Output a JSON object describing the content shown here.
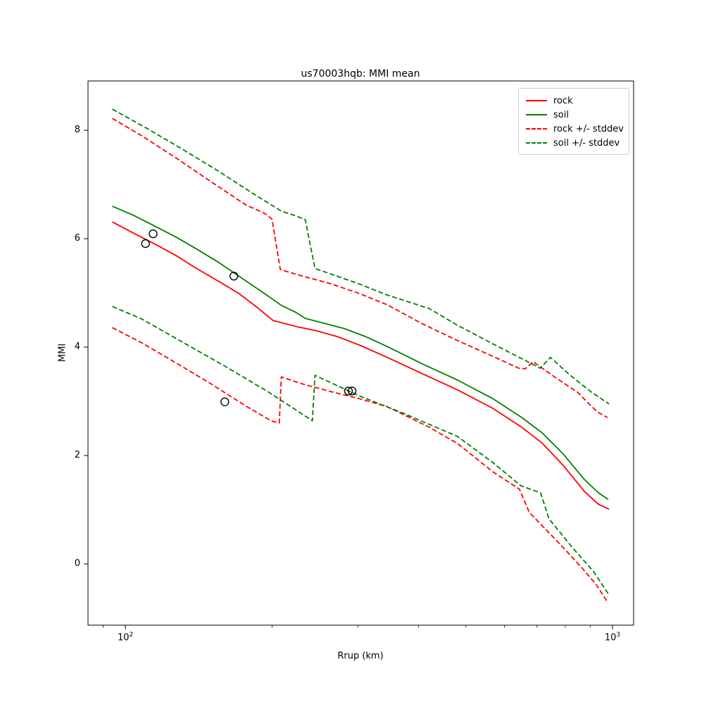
{
  "figure": {
    "title": "us70003hqb: MMI mean",
    "xlabel": "Rrup (km)",
    "ylabel": "MMI"
  },
  "colors": {
    "rock": "#ff0000",
    "soil": "#008000",
    "axis": "#000000",
    "observation": "#000000",
    "legend_border": "#cccccc",
    "background": "#ffffff"
  },
  "chart_data": {
    "type": "line",
    "title": "us70003hqb: MMI mean",
    "xlabel": "Rrup (km)",
    "ylabel": "MMI",
    "x_scale": "log",
    "xlim": [
      83.8,
      1105
    ],
    "ylim": [
      -1.13,
      8.91
    ],
    "grid": false,
    "legend_position": "upper right",
    "x_ticks_major": [
      {
        "value": 100,
        "base": "10",
        "exp": "2"
      },
      {
        "value": 1000,
        "base": "10",
        "exp": "3"
      }
    ],
    "x_ticks_minor": [
      90,
      200,
      300,
      400,
      500,
      600,
      700,
      800,
      900
    ],
    "y_ticks": [
      0,
      2,
      4,
      6,
      8
    ],
    "legend": [
      {
        "label": "rock",
        "color": "#ff0000",
        "dashed": false
      },
      {
        "label": "soil",
        "color": "#008000",
        "dashed": false
      },
      {
        "label": "rock +/- stddev",
        "color": "#ff0000",
        "dashed": true
      },
      {
        "label": "soil +/- stddev",
        "color": "#008000",
        "dashed": true
      }
    ],
    "series": [
      {
        "id": "rock-mean",
        "name": "rock",
        "color": "#ff0000",
        "style": "solid",
        "points": [
          [
            94,
            6.31
          ],
          [
            104,
            6.1
          ],
          [
            115,
            5.9
          ],
          [
            127,
            5.69
          ],
          [
            140,
            5.45
          ],
          [
            155,
            5.22
          ],
          [
            171,
            4.99
          ],
          [
            186,
            4.74
          ],
          [
            201,
            4.49
          ],
          [
            224,
            4.38
          ],
          [
            247,
            4.3
          ],
          [
            273,
            4.19
          ],
          [
            302,
            4.04
          ],
          [
            345,
            3.81
          ],
          [
            407,
            3.51
          ],
          [
            481,
            3.21
          ],
          [
            568,
            2.87
          ],
          [
            649,
            2.53
          ],
          [
            717,
            2.23
          ],
          [
            792,
            1.82
          ],
          [
            875,
            1.34
          ],
          [
            936,
            1.1
          ],
          [
            984,
            1.01
          ]
        ]
      },
      {
        "id": "soil-mean",
        "name": "soil",
        "color": "#008000",
        "style": "solid",
        "points": [
          [
            94,
            6.6
          ],
          [
            104,
            6.43
          ],
          [
            115,
            6.23
          ],
          [
            127,
            6.03
          ],
          [
            140,
            5.81
          ],
          [
            155,
            5.57
          ],
          [
            171,
            5.31
          ],
          [
            190,
            5.03
          ],
          [
            209,
            4.77
          ],
          [
            224,
            4.64
          ],
          [
            234,
            4.53
          ],
          [
            256,
            4.44
          ],
          [
            282,
            4.34
          ],
          [
            312,
            4.19
          ],
          [
            345,
            4.01
          ],
          [
            407,
            3.69
          ],
          [
            481,
            3.39
          ],
          [
            568,
            3.05
          ],
          [
            649,
            2.71
          ],
          [
            717,
            2.42
          ],
          [
            792,
            2.03
          ],
          [
            875,
            1.56
          ],
          [
            936,
            1.31
          ],
          [
            980,
            1.19
          ]
        ]
      },
      {
        "id": "rock-plus-stddev",
        "name": "rock +/- stddev",
        "color": "#ff0000",
        "style": "dashed",
        "points": [
          [
            94,
            8.22
          ],
          [
            108,
            7.9
          ],
          [
            127,
            7.49
          ],
          [
            150,
            7.05
          ],
          [
            177,
            6.62
          ],
          [
            193,
            6.47
          ],
          [
            200,
            6.36
          ],
          [
            208,
            5.43
          ],
          [
            231,
            5.31
          ],
          [
            264,
            5.17
          ],
          [
            302,
            4.99
          ],
          [
            345,
            4.78
          ],
          [
            407,
            4.43
          ],
          [
            481,
            4.12
          ],
          [
            568,
            3.83
          ],
          [
            642,
            3.61
          ],
          [
            662,
            3.6
          ],
          [
            687,
            3.73
          ],
          [
            766,
            3.43
          ],
          [
            847,
            3.17
          ],
          [
            929,
            2.81
          ],
          [
            977,
            2.7
          ]
        ]
      },
      {
        "id": "rock-minus-stddev",
        "name": "rock +/- stddev",
        "color": "#ff0000",
        "style": "dashed",
        "points": [
          [
            94,
            4.36
          ],
          [
            108,
            4.08
          ],
          [
            127,
            3.71
          ],
          [
            150,
            3.32
          ],
          [
            177,
            2.91
          ],
          [
            199,
            2.64
          ],
          [
            207,
            2.6
          ],
          [
            209,
            3.45
          ],
          [
            231,
            3.32
          ],
          [
            264,
            3.18
          ],
          [
            302,
            3.05
          ],
          [
            345,
            2.9
          ],
          [
            421,
            2.52
          ],
          [
            481,
            2.22
          ],
          [
            568,
            1.7
          ],
          [
            644,
            1.38
          ],
          [
            675,
            0.95
          ],
          [
            749,
            0.53
          ],
          [
            798,
            0.27
          ],
          [
            867,
            -0.08
          ],
          [
            926,
            -0.38
          ],
          [
            974,
            -0.69
          ]
        ]
      },
      {
        "id": "soil-plus-stddev",
        "name": "soil +/- stddev",
        "color": "#008000",
        "style": "dashed",
        "points": [
          [
            94,
            8.39
          ],
          [
            111,
            8.03
          ],
          [
            131,
            7.65
          ],
          [
            155,
            7.25
          ],
          [
            183,
            6.83
          ],
          [
            209,
            6.51
          ],
          [
            224,
            6.42
          ],
          [
            234,
            6.35
          ],
          [
            245,
            5.45
          ],
          [
            299,
            5.18
          ],
          [
            345,
            4.96
          ],
          [
            421,
            4.71
          ],
          [
            481,
            4.4
          ],
          [
            568,
            4.06
          ],
          [
            687,
            3.68
          ],
          [
            710,
            3.61
          ],
          [
            746,
            3.81
          ],
          [
            819,
            3.48
          ],
          [
            905,
            3.17
          ],
          [
            984,
            2.95
          ]
        ]
      },
      {
        "id": "soil-minus-stddev",
        "name": "soil +/- stddev",
        "color": "#008000",
        "style": "dashed",
        "points": [
          [
            94,
            4.75
          ],
          [
            108,
            4.52
          ],
          [
            127,
            4.16
          ],
          [
            160,
            3.65
          ],
          [
            196,
            3.18
          ],
          [
            224,
            2.84
          ],
          [
            242,
            2.64
          ],
          [
            245,
            3.48
          ],
          [
            302,
            3.1
          ],
          [
            372,
            2.78
          ],
          [
            481,
            2.35
          ],
          [
            568,
            1.87
          ],
          [
            649,
            1.44
          ],
          [
            712,
            1.31
          ],
          [
            741,
            0.83
          ],
          [
            833,
            0.27
          ],
          [
            914,
            -0.14
          ],
          [
            980,
            -0.55
          ]
        ]
      }
    ],
    "observations": {
      "marker": "open-circle",
      "color": "#000000",
      "points": [
        [
          110,
          5.91
        ],
        [
          114,
          6.09
        ],
        [
          167,
          5.31
        ],
        [
          160,
          2.99
        ],
        [
          287,
          3.19
        ],
        [
          292,
          3.19
        ]
      ]
    }
  }
}
